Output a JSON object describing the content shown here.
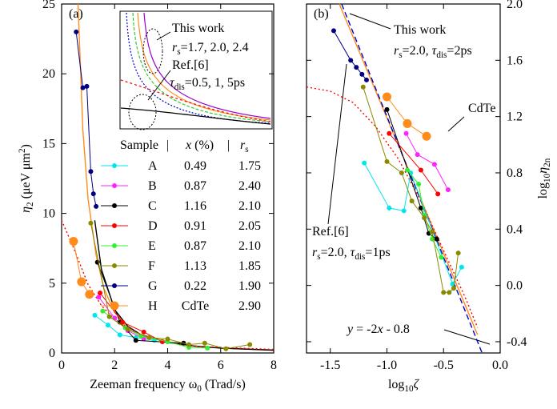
{
  "chart_data": [
    {
      "type": "scatter",
      "label": "(a)",
      "xlabel": [
        "Zeeman frequency ω",
        {
          "text": "0",
          "style": "sub"
        },
        " (Trad/s)"
      ],
      "ylabel": [
        {
          "text": "η",
          "style": "italic"
        },
        {
          "text": "2",
          "style": "sub"
        },
        " (μeV μm",
        {
          "text": "2",
          "style": "sup"
        },
        ")"
      ],
      "xlim": [
        0,
        8
      ],
      "xticks": [
        0,
        2,
        4,
        6,
        8
      ],
      "ylim": [
        0,
        25
      ],
      "yticks": [
        0,
        5,
        10,
        15,
        20,
        25
      ],
      "table_header": [
        "Sample",
        [
          {
            "text": "x",
            "style": "italic"
          },
          " (%)"
        ],
        [
          {
            "text": "r",
            "style": "italic"
          },
          {
            "text": "s",
            "style": "sub"
          }
        ]
      ],
      "series": [
        {
          "name": "A",
          "color": "#00e5ee",
          "table": [
            "0.49",
            "1.75"
          ],
          "x": [
            1.25,
            1.75,
            2.2,
            2.8,
            3.5
          ],
          "values": [
            2.7,
            2.0,
            1.3,
            1.1,
            0.9
          ]
        },
        {
          "name": "B",
          "color": "#ff22ff",
          "table": [
            "0.87",
            "2.40"
          ],
          "x": [
            1.4,
            2.0,
            2.5,
            3.1
          ],
          "values": [
            4.0,
            2.5,
            1.6,
            1.0
          ]
        },
        {
          "name": "C",
          "color": "#000000",
          "table": [
            "1.16",
            "2.10"
          ],
          "x": [
            1.35,
            2.2,
            2.8,
            4.6
          ],
          "values": [
            6.5,
            2.2,
            0.9,
            0.7
          ]
        },
        {
          "name": "D",
          "color": "#ff0000",
          "table": [
            "0.91",
            "2.05"
          ],
          "x": [
            1.45,
            2.3,
            3.1,
            3.8
          ],
          "values": [
            4.3,
            2.2,
            1.5,
            0.8
          ]
        },
        {
          "name": "E",
          "color": "#33ee33",
          "table": [
            "0.87",
            "2.10"
          ],
          "x": [
            1.55,
            2.4,
            3.0,
            4.0,
            4.8,
            5.5
          ],
          "values": [
            3.0,
            1.8,
            1.2,
            0.8,
            0.4,
            0.35
          ]
        },
        {
          "name": "F",
          "color": "#8a8a00",
          "table": [
            "1.13",
            "1.85"
          ],
          "x": [
            1.1,
            1.8,
            2.5,
            3.3,
            4.0,
            4.8,
            5.4,
            6.2,
            7.1
          ],
          "values": [
            9.3,
            2.6,
            1.7,
            1.1,
            1.0,
            0.6,
            0.7,
            0.3,
            0.6
          ]
        },
        {
          "name": "G",
          "color": "#000080",
          "table": [
            "0.22",
            "1.90"
          ],
          "x": [
            0.55,
            0.8,
            0.95,
            1.1,
            1.2,
            1.3
          ],
          "values": [
            23,
            19,
            19.1,
            13,
            11.4,
            10.5
          ]
        },
        {
          "name": "H",
          "color": "#ff8c1a",
          "table": [
            "CdTe",
            "2.90"
          ],
          "x": [
            0.45,
            0.75,
            1.05
          ],
          "values": [
            8.0,
            5.1,
            4.2
          ]
        }
      ],
      "curves": [
        {
          "color": "#ff8c1a",
          "style": "solid",
          "x": [
            0.62,
            0.8,
            1.0,
            1.3,
            1.6,
            2.0,
            2.5,
            3,
            4,
            5,
            6,
            8
          ],
          "values": [
            25,
            16,
            11,
            7,
            4.6,
            2.9,
            1.9,
            1.3,
            0.8,
            0.5,
            0.35,
            0.2
          ]
        },
        {
          "color": "#000000",
          "style": "solid",
          "x": [
            1.25,
            1.5,
            2,
            2.5,
            3,
            4,
            5,
            6,
            8
          ],
          "values": [
            9.5,
            6,
            3.1,
            1.9,
            1.3,
            0.75,
            0.5,
            0.35,
            0.2
          ]
        },
        {
          "color": "#ff0000",
          "style": "dotted",
          "x": [
            0,
            0.5,
            1,
            1.5,
            2,
            3,
            4,
            5,
            6,
            8
          ],
          "values": [
            9.5,
            7.3,
            4.9,
            3.4,
            2.4,
            1.3,
            0.8,
            0.5,
            0.4,
            0.25
          ]
        }
      ],
      "annotations": [
        [
          "This work"
        ],
        [
          {
            "text": "r",
            "style": "italic"
          },
          {
            "text": "s",
            "style": "sub"
          },
          "=1.7, 2.0, 2.4"
        ],
        [
          "Ref.[6]"
        ],
        [
          {
            "text": "τ",
            "style": "italic"
          },
          {
            "text": "dis",
            "style": "sub"
          },
          "=0.5, 1, 5ps"
        ]
      ]
    },
    {
      "type": "scatter",
      "label": "(b)",
      "yaxis_side": "right",
      "xlabel": [
        "log",
        {
          "text": "10",
          "style": "sub"
        },
        {
          "text": "ζ",
          "style": "italic"
        }
      ],
      "ylabel": [
        "log",
        {
          "text": "10",
          "style": "sub"
        },
        {
          "text": "η",
          "style": "italic"
        },
        {
          "text": "2n",
          "style": "sub"
        }
      ],
      "xlim": [
        -1.71,
        0
      ],
      "xticks": [
        -1.5,
        {
          "value": -1.0,
          "label": "-1.0"
        },
        -0.5,
        {
          "value": 0.0,
          "label": "0.0"
        }
      ],
      "ylim": [
        -0.48,
        2.0
      ],
      "yticks": [
        -0.4,
        {
          "value": 0.0,
          "label": "0.0"
        },
        0.4,
        0.8,
        1.2,
        1.6,
        {
          "value": 2.0,
          "label": "2.0"
        }
      ],
      "series": [
        {
          "color": "#00e5ee",
          "x": [
            -1.2,
            -0.98,
            -0.85,
            -0.79,
            -0.42,
            -0.34
          ],
          "values": [
            0.87,
            0.55,
            0.53,
            0.8,
            0.01,
            0.13
          ]
        },
        {
          "color": "#ff22ff",
          "x": [
            -0.83,
            -0.73,
            -0.58,
            -0.46
          ],
          "values": [
            1.08,
            0.93,
            0.86,
            0.68
          ]
        },
        {
          "color": "#000000",
          "x": [
            -1.0,
            -0.7,
            -0.63,
            -0.56
          ],
          "values": [
            1.25,
            0.55,
            0.37,
            0.33
          ]
        },
        {
          "color": "#ff0000",
          "x": [
            -0.98,
            -0.7,
            -0.55
          ],
          "values": [
            1.08,
            0.82,
            0.65
          ]
        },
        {
          "color": "#33ee33",
          "x": [
            -0.82,
            -0.72,
            -0.67,
            -0.6,
            -0.52
          ],
          "values": [
            0.82,
            0.72,
            0.5,
            0.33,
            0.2
          ]
        },
        {
          "color": "#8a8a00",
          "x": [
            -1.21,
            -1.0,
            -0.87,
            -0.78,
            -0.67,
            -0.6,
            -0.5,
            -0.45,
            -0.41,
            -0.37
          ],
          "values": [
            1.41,
            0.88,
            0.8,
            0.6,
            0.48,
            0.38,
            -0.05,
            -0.05,
            -0.02,
            0.23
          ]
        },
        {
          "color": "#000080",
          "x": [
            -1.47,
            -1.32,
            -1.27,
            -1.22,
            -1.18
          ],
          "values": [
            1.81,
            1.6,
            1.55,
            1.5,
            1.46
          ]
        },
        {
          "color": "#ff8c1a",
          "x": [
            -1.0,
            -0.82,
            -0.65
          ],
          "values": [
            1.34,
            1.15,
            1.06
          ]
        }
      ],
      "curves": [
        {
          "color": "#ff8c1a",
          "style": "solid",
          "x": [
            -1.42,
            -0.2
          ],
          "values": [
            2.0,
            -0.35
          ]
        },
        {
          "color": "#0000cc",
          "style": "dashed",
          "x": [
            -1.4,
            -0.16
          ],
          "values": [
            2.0,
            -0.48
          ]
        },
        {
          "color": "#ff0000",
          "style": "dotted",
          "x": [
            -1.71,
            -1.5,
            -1.3,
            -1.1,
            -0.9,
            -0.7,
            -0.5,
            -0.3,
            -0.2
          ],
          "values": [
            1.41,
            1.38,
            1.3,
            1.13,
            0.9,
            0.6,
            0.25,
            -0.1,
            -0.3
          ]
        }
      ],
      "annotations": [
        [
          "This work"
        ],
        [
          {
            "text": "r",
            "style": "italic"
          },
          {
            "text": "s",
            "style": "sub"
          },
          "=2.0, ",
          {
            "text": "τ",
            "style": "italic"
          },
          {
            "text": "dis",
            "style": "sub"
          },
          "=2ps"
        ],
        [
          "CdTe"
        ],
        [
          "Ref.[6]"
        ],
        [
          {
            "text": "r",
            "style": "italic"
          },
          {
            "text": "s",
            "style": "sub"
          },
          "=2.0, ",
          {
            "text": "τ",
            "style": "italic"
          },
          {
            "text": "dis",
            "style": "sub"
          },
          "=1ps"
        ],
        [
          {
            "text": "y",
            "style": "italic"
          },
          " = -2",
          {
            "text": "x",
            "style": "italic"
          },
          " - 0.8"
        ]
      ]
    }
  ]
}
